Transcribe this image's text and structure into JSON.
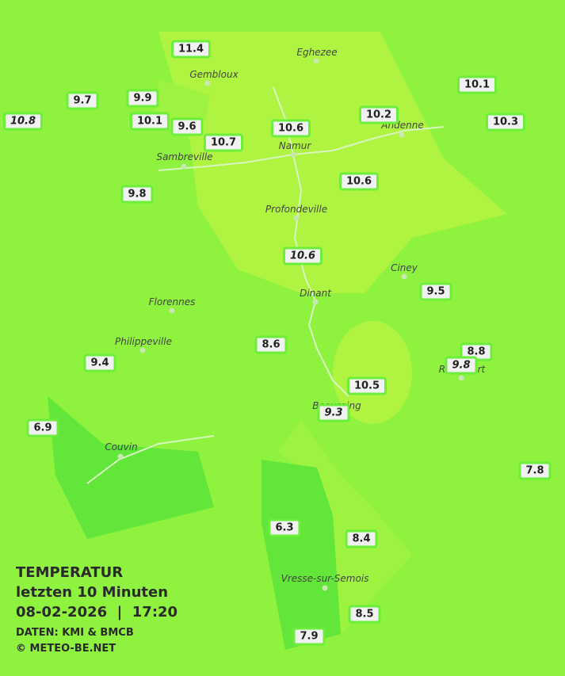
{
  "title": {
    "heading": "TEMPERATUR",
    "period": "letzten 10 Minuten",
    "datetime": "08-02-2026  |  17:20",
    "source": "DATEN: KMI & BMCB",
    "credit": "© METEO-BE.NET"
  },
  "cities": [
    "Eghezee",
    "Gembloux",
    "Andenne",
    "Namur",
    "Sambreville",
    "Profondeville",
    "Ciney",
    "Florennes",
    "Dinant",
    "Philippeville",
    "Rochefort",
    "Beauraing",
    "Couvin",
    "Vresse-sur-Semois"
  ],
  "stations": [
    {
      "value": 11.4
    },
    {
      "value": 9.7
    },
    {
      "value": 9.9
    },
    {
      "value": 10.1
    },
    {
      "value": 10.2
    },
    {
      "value": 10.8,
      "italic": true
    },
    {
      "value": 10.1
    },
    {
      "value": 9.6
    },
    {
      "value": 10.6
    },
    {
      "value": 10.3
    },
    {
      "value": 10.7
    },
    {
      "value": 10.6
    },
    {
      "value": 9.8
    },
    {
      "value": 10.6,
      "italic": true
    },
    {
      "value": 9.5
    },
    {
      "value": 8.6
    },
    {
      "value": 8.8
    },
    {
      "value": 9.8,
      "italic": true
    },
    {
      "value": 9.4
    },
    {
      "value": 10.5
    },
    {
      "value": 9.3,
      "italic": true
    },
    {
      "value": 6.9
    },
    {
      "value": 7.8
    },
    {
      "value": 6.3
    },
    {
      "value": 8.4
    },
    {
      "value": 8.5
    },
    {
      "value": 7.9
    }
  ]
}
